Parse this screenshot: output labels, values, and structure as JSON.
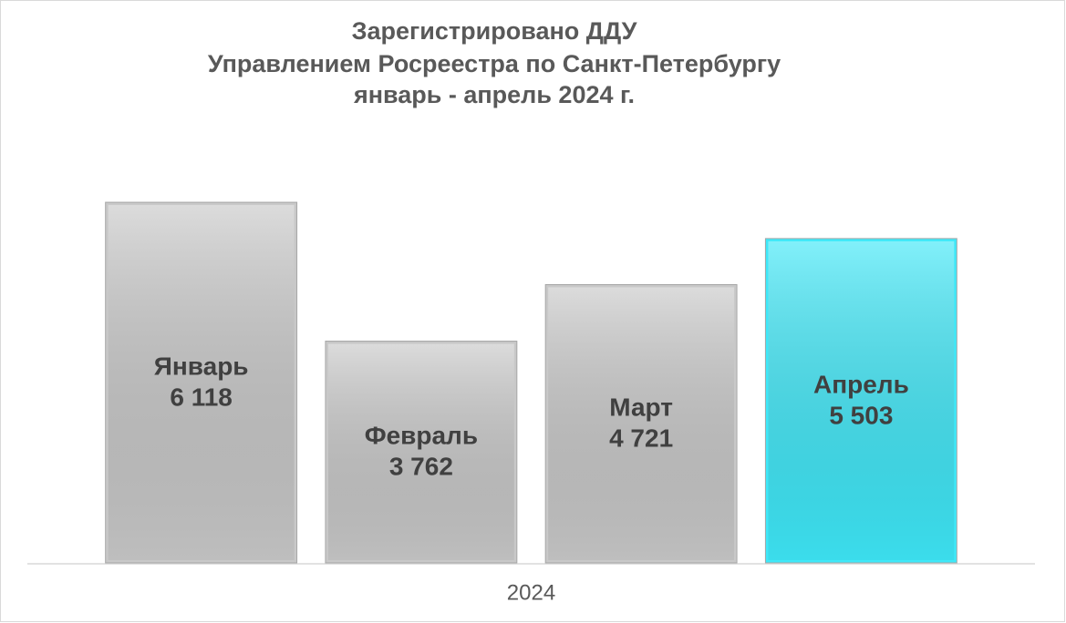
{
  "chart_data": {
    "type": "bar",
    "title": [
      "Зарегистрировано ДДУ",
      "Управлением Росреестра по Санкт-Петербургу",
      "январь - апрель 2024 г."
    ],
    "categories": [
      "2024"
    ],
    "series": [
      {
        "name": "Январь",
        "color": "#c8c8c8",
        "values": [
          6118
        ],
        "value_labels": [
          "6 118"
        ]
      },
      {
        "name": "Февраль",
        "color": "#c8c8c8",
        "values": [
          3762
        ],
        "value_labels": [
          "3 762"
        ]
      },
      {
        "name": "Март",
        "color": "#c8c8c8",
        "values": [
          4721
        ],
        "value_labels": [
          "4 721"
        ]
      },
      {
        "name": "Апрель",
        "color": "#3ee8f8",
        "values": [
          5503
        ],
        "value_labels": [
          "5 503"
        ]
      }
    ],
    "ylim": [
      0,
      7000
    ]
  }
}
